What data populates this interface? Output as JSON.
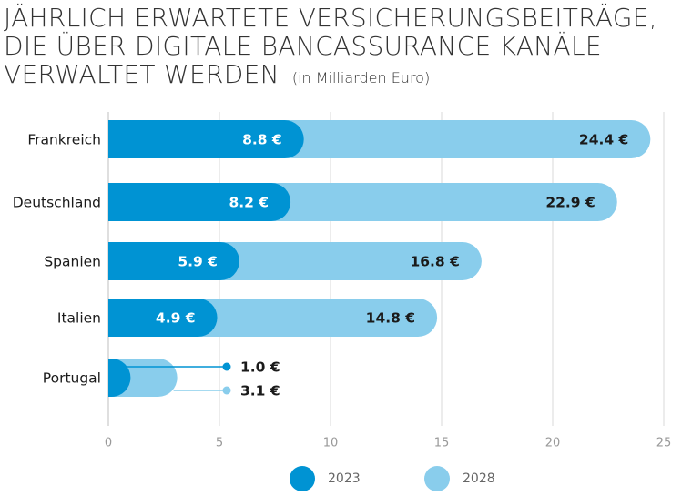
{
  "title": {
    "lines": [
      "JÄHRLICH ERWARTETE VERSICHERUNGSBEITRÄGE,",
      "DIE ÜBER DIGITALE BANCASSURANCE KANÄLE",
      "VERWALTET WERDEN"
    ],
    "subtitle": "(in Milliarden Euro)"
  },
  "colors": {
    "series_2023": "#0093D3",
    "series_2028": "#89CDEC",
    "grid": "#D9D9D9",
    "axis_text": "#999999",
    "label_dark": "#1A1A1A",
    "label_light": "#FFFFFF"
  },
  "chart_data": {
    "type": "bar",
    "orientation": "horizontal",
    "title": "JÄHRLICH ERWARTETE VERSICHERUNGSBEITRÄGE, DIE ÜBER DIGITALE BANCASSURANCE KANÄLE VERWALTET WERDEN",
    "subtitle": "(in Milliarden Euro)",
    "categories": [
      "Frankreich",
      "Deutschland",
      "Spanien",
      "Italien",
      "Portugal"
    ],
    "series": [
      {
        "name": "2023",
        "values": [
          8.8,
          8.2,
          5.9,
          4.9,
          1.0
        ],
        "labels": [
          "8.8 €",
          "8.2 €",
          "5.9 €",
          "4.9 €",
          "1.0 €"
        ]
      },
      {
        "name": "2028",
        "values": [
          24.4,
          22.9,
          16.8,
          14.8,
          3.1
        ],
        "labels": [
          "24.4 €",
          "22.9 €",
          "16.8 €",
          "14.8 €",
          "3.1 €"
        ]
      }
    ],
    "xlim": [
      0,
      25
    ],
    "xticks": [
      0,
      5,
      10,
      15,
      20,
      25
    ],
    "grid": true,
    "legend_position": "bottom"
  }
}
